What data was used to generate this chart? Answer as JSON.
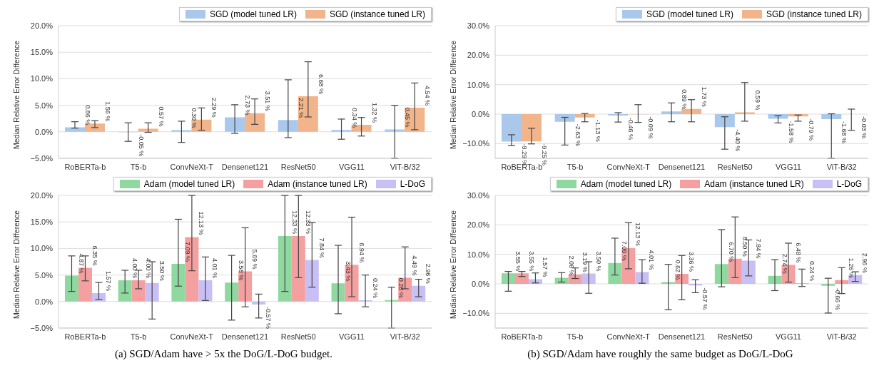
{
  "chart_data": [
    {
      "type": "bar",
      "ylabel": "Median Relative Error Difference",
      "categories": [
        "RoBERTa-b",
        "T5-b",
        "ConvNeXt-T",
        "Densenet121",
        "ResNet50",
        "VGG11",
        "ViT-B/32"
      ],
      "series": [
        {
          "name": "SGD (model tuned LR)",
          "color": "#a9c8ec",
          "values": [
            0.86,
            -0.05,
            0.3,
            2.73,
            2.21,
            0.34,
            0.45
          ],
          "value_labels": [
            "0.86 %",
            "-0.05 %",
            "0.30 %",
            "2.73 %",
            "2.21 %",
            "0.34 %",
            "0.45 %"
          ],
          "errors": [
            [
              0.7,
              1.9
            ],
            [
              -1.8,
              1.7
            ],
            [
              -2.0,
              2.0
            ],
            [
              -0.3,
              5.1
            ],
            [
              -1.1,
              9.8
            ],
            [
              -1.4,
              2.4
            ],
            [
              -5.0,
              5.0
            ]
          ]
        },
        {
          "name": "SGD (instance tuned LR)",
          "color": "#f2b48a",
          "values": [
            1.56,
            0.57,
            2.29,
            3.51,
            6.68,
            1.32,
            4.54
          ],
          "value_labels": [
            "1.56 %",
            "0.57 %",
            "2.29 %",
            "3.51 %",
            "6.68 %",
            "1.32 %",
            "4.54 %"
          ],
          "errors": [
            [
              0.8,
              2.1
            ],
            [
              -0.1,
              1.7
            ],
            [
              0.3,
              4.5
            ],
            [
              1.4,
              6.2
            ],
            [
              2.8,
              13.2
            ],
            [
              -0.8,
              2.7
            ],
            [
              0.4,
              9.2
            ]
          ]
        }
      ],
      "ylim": [
        -5,
        20
      ],
      "yticks": [
        {
          "value": -5,
          "label": "−5.0%"
        },
        {
          "value": 0,
          "label": "0.0%"
        },
        {
          "value": 5,
          "label": "5.0%"
        },
        {
          "value": 10,
          "label": "10.0%"
        },
        {
          "value": 15,
          "label": "15.0%"
        },
        {
          "value": 20,
          "label": "20.0%"
        }
      ],
      "grid": "y",
      "legend": "top right"
    },
    {
      "type": "bar",
      "ylabel": "Median Relative Error Difference",
      "categories": [
        "RoBERTa-b",
        "T5-b",
        "ConvNeXt-T",
        "Densenet121",
        "ResNet50",
        "VGG11",
        "ViT-B/32"
      ],
      "series": [
        {
          "name": "SGD (model tuned LR)",
          "color": "#a9c8ec",
          "values": [
            -9.29,
            -2.63,
            -0.46,
            0.89,
            -4.4,
            -1.58,
            -1.68
          ],
          "value_labels": [
            "-9.29 %",
            "-2.63 %",
            "-0.46 %",
            "0.89 %",
            "-4.40 %",
            "-1.58 %",
            "-1.68 %"
          ],
          "errors": [
            [
              -10.7,
              -7.0
            ],
            [
              -10.5,
              -1.1
            ],
            [
              -2.7,
              0.5
            ],
            [
              -2.6,
              3.8
            ],
            [
              -11.9,
              -0.9
            ],
            [
              -3.0,
              -0.5
            ],
            [
              -15,
              0.1
            ]
          ]
        },
        {
          "name": "SGD (instance tuned LR)",
          "color": "#f2b48a",
          "values": [
            -9.25,
            -1.13,
            -0.09,
            1.73,
            0.59,
            -0.79,
            -0.03
          ],
          "value_labels": [
            "-9.25 %",
            "-1.13 %",
            "-0.09 %",
            "1.73 %",
            "0.59 %",
            "-0.79 %",
            "-0.03 %"
          ],
          "errors": [
            [
              -10.1,
              -4.8
            ],
            [
              -2.6,
              0.2
            ],
            [
              -2.8,
              3.2
            ],
            [
              -2.6,
              4.9
            ],
            [
              -2.4,
              10.7
            ],
            [
              -2.4,
              -0.3
            ],
            [
              -5.5,
              1.7
            ]
          ]
        }
      ],
      "ylim": [
        -15,
        30
      ],
      "yticks": [
        {
          "value": -10,
          "label": "−10.0%"
        },
        {
          "value": 0,
          "label": "0.0%"
        },
        {
          "value": 10,
          "label": "10.0%"
        },
        {
          "value": 20,
          "label": "20.0%"
        },
        {
          "value": 30,
          "label": "30.0%"
        }
      ],
      "grid": "y",
      "legend": "top right"
    },
    {
      "type": "bar",
      "ylabel": "Median Relative Error Difference",
      "categories": [
        "RoBERTa-b",
        "T5-b",
        "ConvNeXt-T",
        "Densenet121",
        "ResNet50",
        "VGG11",
        "ViT-B/32"
      ],
      "series": [
        {
          "name": "Adam (model tuned LR)",
          "color": "#8fd9a0",
          "values": [
            4.87,
            4.0,
            7.09,
            3.58,
            12.33,
            3.43,
            0.28
          ],
          "value_labels": [
            "4.87 %",
            "4.00 %",
            "7.09 %",
            "3.58 %",
            "12.33 %",
            "3.43 %",
            "0.28 %"
          ],
          "errors": [
            [
              1.9,
              8.6
            ],
            [
              1.6,
              5.9
            ],
            [
              2.9,
              15.5
            ],
            [
              -3.5,
              8.7
            ],
            [
              1.9,
              20
            ],
            [
              -2.3,
              10.6
            ],
            [
              -5.0,
              2.7
            ]
          ]
        },
        {
          "name": "Adam (instance tuned LR)",
          "color": "#f4a0a0",
          "values": [
            6.35,
            4.0,
            12.13,
            5.69,
            12.33,
            6.94,
            4.49
          ],
          "value_labels": [
            "6.35 %",
            "4.00 %",
            "12.13 %",
            "5.69 %",
            "12.33 %",
            "6.94 %",
            "4.49 %"
          ],
          "errors": [
            [
              3.9,
              8.6
            ],
            [
              2.4,
              5.9
            ],
            [
              5.8,
              20
            ],
            [
              -1.0,
              13.9
            ],
            [
              4.5,
              20
            ],
            [
              0.9,
              15.9
            ],
            [
              2.4,
              10.3
            ]
          ]
        },
        {
          "name": "L-DoG",
          "color": "#c8bff5",
          "values": [
            1.57,
            3.5,
            4.01,
            -0.57,
            7.84,
            0.24,
            2.96
          ],
          "value_labels": [
            "1.57 %",
            "3.50 %",
            "4.01 %",
            "-0.57 %",
            "7.84 %",
            "0.24 %",
            "2.96 %"
          ],
          "errors": [
            [
              0.4,
              3.6
            ],
            [
              -3.3,
              7.5
            ],
            [
              0.2,
              8.4
            ],
            [
              -3.1,
              1.4
            ],
            [
              2.7,
              14.9
            ],
            [
              -1.0,
              5.0
            ],
            [
              0.9,
              4.2
            ]
          ]
        }
      ],
      "ylim": [
        -5,
        20
      ],
      "yticks": [
        {
          "value": -5,
          "label": "−5.0%"
        },
        {
          "value": 0,
          "label": "0.0%"
        },
        {
          "value": 5,
          "label": "5.0%"
        },
        {
          "value": 10,
          "label": "10.0%"
        },
        {
          "value": 15,
          "label": "15.0%"
        },
        {
          "value": 20,
          "label": "20.0%"
        }
      ],
      "grid": "y",
      "legend": "top right",
      "annotations": [
        "(a) SGD/Adam have > 5x the DoG/L-DoG budget."
      ]
    },
    {
      "type": "bar",
      "ylabel": "Median Relative Error Difference",
      "categories": [
        "RoBERTa-b",
        "T5-b",
        "ConvNeXt-T",
        "Densenet121",
        "ResNet50",
        "VGG11",
        "ViT-B/32"
      ],
      "series": [
        {
          "name": "Adam (model tuned LR)",
          "color": "#8fd9a0",
          "values": [
            3.55,
            2.06,
            7.09,
            0.62,
            6.7,
            2.74,
            -0.66
          ],
          "value_labels": [
            "3.55 %",
            "2.06 %",
            "7.09 %",
            "0.62 %",
            "6.70 %",
            "2.74 %",
            "-0.66 %"
          ],
          "errors": [
            [
              -2.5,
              4.2
            ],
            [
              0.6,
              3.8
            ],
            [
              3.0,
              15.5
            ],
            [
              -8.8,
              6.6
            ],
            [
              -1.0,
              18.4
            ],
            [
              -2.3,
              8.2
            ],
            [
              -9.9,
              1.9
            ]
          ]
        },
        {
          "name": "Adam (instance tuned LR)",
          "color": "#f4a0a0",
          "values": [
            3.55,
            3.19,
            12.13,
            3.36,
            8.5,
            6.48,
            1.26
          ],
          "value_labels": [
            "3.55 %",
            "3.19 %",
            "12.13 %",
            "3.36 %",
            "8.50 %",
            "6.48 %",
            "1.26 %"
          ],
          "errors": [
            [
              2.5,
              4.2
            ],
            [
              1.8,
              5.4
            ],
            [
              5.1,
              20.8
            ],
            [
              -5.4,
              9.6
            ],
            [
              2.1,
              22.7
            ],
            [
              0.6,
              13.8
            ],
            [
              -3.3,
              5.5
            ]
          ]
        },
        {
          "name": "L-DoG",
          "color": "#c8bff5",
          "values": [
            1.57,
            3.5,
            4.01,
            -0.57,
            7.84,
            0.24,
            2.96
          ],
          "value_labels": [
            "1.57 %",
            "3.50 %",
            "4.01 %",
            "-0.57 %",
            "7.84 %",
            "0.24 %",
            "2.96 %"
          ],
          "errors": [
            [
              0.3,
              3.7
            ],
            [
              -3.2,
              7.5
            ],
            [
              0.2,
              8.2
            ],
            [
              -3.0,
              1.4
            ],
            [
              2.7,
              14.9
            ],
            [
              -0.9,
              5.0
            ],
            [
              0.8,
              4.1
            ]
          ]
        }
      ],
      "ylim": [
        -15,
        30
      ],
      "yticks": [
        {
          "value": -10,
          "label": "−10.0%"
        },
        {
          "value": 0,
          "label": "0.0%"
        },
        {
          "value": 10,
          "label": "10.0%"
        },
        {
          "value": 20,
          "label": "20.0%"
        },
        {
          "value": 30,
          "label": "30.0%"
        }
      ],
      "grid": "y",
      "legend": "top right",
      "annotations": [
        "(b) SGD/Adam have roughly the same budget as DoG/L-DoG"
      ]
    }
  ]
}
